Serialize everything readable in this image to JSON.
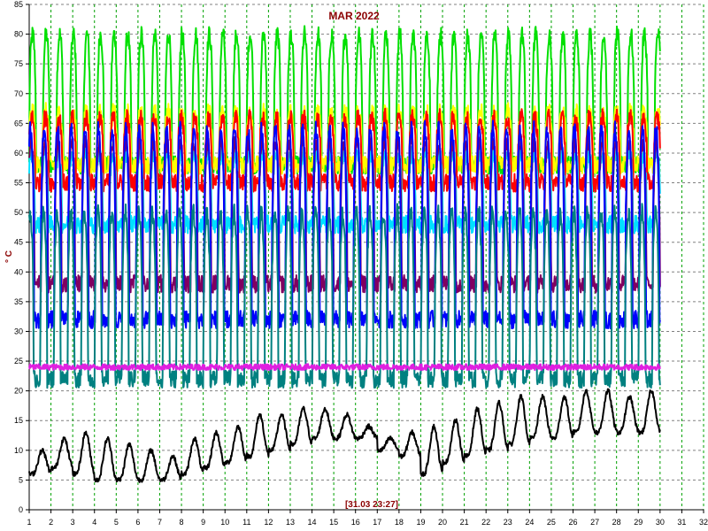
{
  "chart_data": {
    "type": "line",
    "title": "MAR 2022",
    "ylabel": "° C",
    "xlabel": "",
    "timestamp": "[31.03 23:27]",
    "xlim": [
      1,
      32
    ],
    "ylim": [
      0,
      85
    ],
    "x_ticks": [
      1,
      2,
      3,
      4,
      5,
      6,
      7,
      8,
      9,
      10,
      11,
      12,
      13,
      14,
      15,
      16,
      17,
      18,
      19,
      20,
      21,
      22,
      23,
      24,
      25,
      26,
      27,
      28,
      29,
      30,
      31,
      32
    ],
    "y_ticks": [
      0,
      5,
      10,
      15,
      20,
      25,
      30,
      35,
      40,
      45,
      50,
      55,
      60,
      65,
      70,
      75,
      80,
      85
    ],
    "grid": true,
    "legend": "none",
    "series": [
      {
        "color": "#00e000",
        "base": 58,
        "peak": 80,
        "cycles_per_day": 1.6,
        "x": [
          1,
          30
        ]
      },
      {
        "color": "#ffff00",
        "base": 58,
        "peak": 67,
        "cycles_per_day": 1.6,
        "x": [
          1,
          30
        ]
      },
      {
        "color": "#ff0000",
        "base": 55,
        "peak": 66,
        "cycles_per_day": 1.6,
        "x": [
          1,
          30
        ]
      },
      {
        "color": "#00e0ff",
        "base": 48,
        "peak": 60,
        "cycles_per_day": 1.6,
        "x": [
          1,
          30
        ]
      },
      {
        "color": "#800060",
        "base": 38,
        "peak": 62,
        "cycles_per_day": 1.6,
        "x": [
          1,
          30
        ]
      },
      {
        "color": "#0000ff",
        "base": 32,
        "peak": 64,
        "cycles_per_day": 1.6,
        "x": [
          1,
          30
        ]
      },
      {
        "color": "#008080",
        "base": 22,
        "peak": 50,
        "cycles_per_day": 1.6,
        "x": [
          1,
          30
        ]
      },
      {
        "color": "#e020e0",
        "base": 23.5,
        "peak": 24.5,
        "cycles_per_day": 0,
        "x": [
          1,
          30
        ]
      },
      {
        "color": "#000000",
        "daily_min": [
          6,
          7,
          6,
          5,
          5,
          5,
          5,
          6,
          7,
          8,
          9,
          10,
          11,
          12,
          12,
          12,
          10,
          9,
          6,
          8,
          9,
          10,
          11,
          12,
          12,
          13,
          13,
          13,
          13,
          13
        ],
        "daily_max": [
          10,
          12,
          13,
          12,
          11,
          10,
          9,
          12,
          13,
          14,
          16,
          16,
          17,
          17,
          16,
          14,
          12,
          13,
          14,
          15,
          17,
          18,
          19,
          19,
          19,
          20,
          20,
          19,
          20,
          16
        ],
        "x": [
          1,
          30
        ]
      }
    ]
  }
}
